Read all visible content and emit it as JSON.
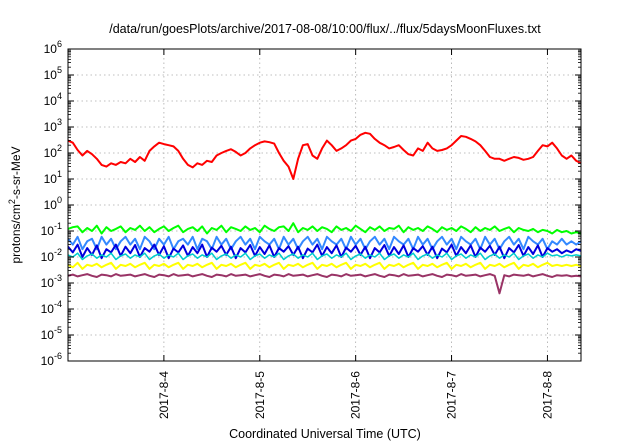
{
  "chart_data": {
    "type": "line",
    "title": "/data/run/goesPlots/archive/2017-08-08/10:00/flux/../flux/5daysMoonFluxes.txt",
    "xlabel": "Coordinated Universal Time (UTC)",
    "ylabel_parts": [
      "protons/cm",
      "2",
      "-s-sr-MeV"
    ],
    "yscale": "log",
    "ylim": [
      1e-06,
      1000000.0
    ],
    "xlim": [
      0.0,
      5.35
    ],
    "x_origin_date": "2017-08-03 00:00 UTC",
    "grid": true,
    "y_ticks": [
      {
        "base": "10",
        "exp": "-6",
        "value": 1e-06
      },
      {
        "base": "10",
        "exp": "-5",
        "value": 1e-05
      },
      {
        "base": "10",
        "exp": "-4",
        "value": 0.0001
      },
      {
        "base": "10",
        "exp": "-3",
        "value": 0.001
      },
      {
        "base": "10",
        "exp": "-2",
        "value": 0.01
      },
      {
        "base": "10",
        "exp": "-1",
        "value": 0.1
      },
      {
        "base": "10",
        "exp": "0",
        "value": 1.0
      },
      {
        "base": "10",
        "exp": "1",
        "value": 10.0
      },
      {
        "base": "10",
        "exp": "2",
        "value": 100.0
      },
      {
        "base": "10",
        "exp": "3",
        "value": 1000.0
      },
      {
        "base": "10",
        "exp": "4",
        "value": 10000.0
      },
      {
        "base": "10",
        "exp": "5",
        "value": 100000.0
      },
      {
        "base": "10",
        "exp": "6",
        "value": 1000000.0
      }
    ],
    "x_ticks": [
      {
        "label": "2017-8-4",
        "value": 1.0
      },
      {
        "label": "2017-8-5",
        "value": 2.0
      },
      {
        "label": "2017-8-6",
        "value": 3.0
      },
      {
        "label": "2017-8-7",
        "value": 4.0
      },
      {
        "label": "2017-8-8",
        "value": 5.0
      }
    ],
    "x": [
      0.0,
      0.05,
      0.1,
      0.15,
      0.2,
      0.25,
      0.3,
      0.35,
      0.4,
      0.45,
      0.5,
      0.55,
      0.6,
      0.65,
      0.7,
      0.75,
      0.8,
      0.85,
      0.9,
      0.95,
      1.0,
      1.05,
      1.1,
      1.15,
      1.2,
      1.25,
      1.3,
      1.35,
      1.4,
      1.45,
      1.5,
      1.55,
      1.6,
      1.65,
      1.7,
      1.75,
      1.8,
      1.85,
      1.9,
      1.95,
      2.0,
      2.05,
      2.1,
      2.15,
      2.2,
      2.25,
      2.3,
      2.35,
      2.4,
      2.45,
      2.5,
      2.55,
      2.6,
      2.65,
      2.7,
      2.75,
      2.8,
      2.85,
      2.9,
      2.95,
      3.0,
      3.05,
      3.1,
      3.15,
      3.2,
      3.25,
      3.3,
      3.35,
      3.4,
      3.45,
      3.5,
      3.55,
      3.6,
      3.65,
      3.7,
      3.75,
      3.8,
      3.85,
      3.9,
      3.95,
      4.0,
      4.05,
      4.1,
      4.15,
      4.2,
      4.25,
      4.3,
      4.35,
      4.4,
      4.45,
      4.5,
      4.55,
      4.6,
      4.65,
      4.7,
      4.75,
      4.8,
      4.85,
      4.9,
      4.95,
      5.0,
      5.05,
      5.1,
      5.15,
      5.2,
      5.25,
      5.3,
      5.35
    ],
    "series": [
      {
        "color": "#ff0000",
        "width": 2,
        "values": [
          300,
          250,
          130,
          80,
          120,
          90,
          60,
          35,
          30,
          40,
          35,
          45,
          40,
          60,
          45,
          70,
          50,
          120,
          180,
          250,
          220,
          200,
          180,
          120,
          60,
          35,
          28,
          40,
          35,
          50,
          45,
          80,
          100,
          120,
          140,
          110,
          80,
          100,
          150,
          200,
          250,
          280,
          260,
          230,
          100,
          50,
          30,
          10,
          60,
          200,
          220,
          80,
          60,
          150,
          300,
          200,
          120,
          150,
          200,
          300,
          350,
          500,
          600,
          550,
          350,
          250,
          200,
          150,
          170,
          200,
          130,
          90,
          80,
          150,
          120,
          250,
          150,
          120,
          130,
          150,
          200,
          300,
          450,
          420,
          350,
          280,
          200,
          120,
          70,
          60,
          60,
          50,
          60,
          70,
          65,
          55,
          60,
          70,
          120,
          200,
          180,
          250,
          150,
          80,
          60,
          80,
          50,
          40
        ]
      },
      {
        "color": "#00ff00",
        "width": 2,
        "values": [
          0.12,
          0.14,
          0.15,
          0.09,
          0.13,
          0.1,
          0.16,
          0.08,
          0.14,
          0.1,
          0.12,
          0.15,
          0.09,
          0.13,
          0.11,
          0.16,
          0.1,
          0.14,
          0.09,
          0.12,
          0.15,
          0.1,
          0.13,
          0.16,
          0.09,
          0.12,
          0.14,
          0.1,
          0.15,
          0.08,
          0.13,
          0.11,
          0.16,
          0.09,
          0.14,
          0.12,
          0.1,
          0.15,
          0.11,
          0.13,
          0.09,
          0.16,
          0.12,
          0.1,
          0.14,
          0.15,
          0.1,
          0.2,
          0.09,
          0.13,
          0.11,
          0.15,
          0.1,
          0.14,
          0.12,
          0.09,
          0.15,
          0.11,
          0.13,
          0.1,
          0.16,
          0.12,
          0.09,
          0.14,
          0.11,
          0.15,
          0.1,
          0.13,
          0.12,
          0.16,
          0.09,
          0.14,
          0.11,
          0.13,
          0.1,
          0.15,
          0.12,
          0.09,
          0.14,
          0.11,
          0.13,
          0.1,
          0.15,
          0.12,
          0.09,
          0.14,
          0.1,
          0.13,
          0.11,
          0.15,
          0.1,
          0.12,
          0.14,
          0.09,
          0.13,
          0.11,
          0.1,
          0.12,
          0.09,
          0.11,
          0.1,
          0.08,
          0.11,
          0.09,
          0.1,
          0.08,
          0.09,
          0.08
        ]
      },
      {
        "color": "#3388ff",
        "width": 2,
        "values": [
          0.05,
          0.03,
          0.06,
          0.02,
          0.04,
          0.05,
          0.02,
          0.06,
          0.03,
          0.05,
          0.02,
          0.04,
          0.06,
          0.03,
          0.05,
          0.02,
          0.06,
          0.04,
          0.02,
          0.05,
          0.03,
          0.06,
          0.02,
          0.04,
          0.05,
          0.03,
          0.06,
          0.02,
          0.05,
          0.04,
          0.02,
          0.06,
          0.03,
          0.05,
          0.02,
          0.04,
          0.06,
          0.03,
          0.05,
          0.02,
          0.06,
          0.04,
          0.03,
          0.05,
          0.02,
          0.06,
          0.03,
          0.05,
          0.02,
          0.04,
          0.06,
          0.03,
          0.05,
          0.02,
          0.06,
          0.04,
          0.03,
          0.05,
          0.02,
          0.06,
          0.03,
          0.05,
          0.02,
          0.04,
          0.06,
          0.03,
          0.05,
          0.02,
          0.06,
          0.04,
          0.03,
          0.05,
          0.02,
          0.06,
          0.03,
          0.05,
          0.02,
          0.04,
          0.06,
          0.03,
          0.05,
          0.02,
          0.06,
          0.04,
          0.03,
          0.05,
          0.02,
          0.06,
          0.03,
          0.05,
          0.02,
          0.04,
          0.06,
          0.03,
          0.05,
          0.02,
          0.06,
          0.04,
          0.03,
          0.05,
          0.02,
          0.04,
          0.03,
          0.05,
          0.03,
          0.04,
          0.03,
          0.04
        ]
      },
      {
        "color": "#0000dd",
        "width": 2,
        "values": [
          0.025,
          0.015,
          0.03,
          0.01,
          0.022,
          0.012,
          0.028,
          0.009,
          0.02,
          0.015,
          0.03,
          0.011,
          0.025,
          0.014,
          0.029,
          0.01,
          0.022,
          0.016,
          0.03,
          0.012,
          0.026,
          0.009,
          0.021,
          0.015,
          0.028,
          0.011,
          0.024,
          0.014,
          0.03,
          0.01,
          0.023,
          0.016,
          0.027,
          0.012,
          0.025,
          0.009,
          0.022,
          0.015,
          0.029,
          0.011,
          0.024,
          0.013,
          0.028,
          0.01,
          0.022,
          0.016,
          0.026,
          0.012,
          0.025,
          0.009,
          0.021,
          0.015,
          0.03,
          0.011,
          0.024,
          0.014,
          0.028,
          0.01,
          0.023,
          0.016,
          0.027,
          0.012,
          0.025,
          0.009,
          0.022,
          0.015,
          0.029,
          0.011,
          0.024,
          0.013,
          0.028,
          0.01,
          0.022,
          0.016,
          0.026,
          0.012,
          0.025,
          0.009,
          0.021,
          0.015,
          0.03,
          0.011,
          0.024,
          0.014,
          0.028,
          0.01,
          0.023,
          0.016,
          0.027,
          0.012,
          0.025,
          0.009,
          0.022,
          0.015,
          0.029,
          0.011,
          0.024,
          0.013,
          0.028,
          0.01,
          0.022,
          0.016,
          0.02,
          0.014,
          0.018,
          0.015,
          0.02,
          0.017
        ]
      },
      {
        "color": "#00cccc",
        "width": 1.5,
        "values": [
          0.012,
          0.01,
          0.014,
          0.008,
          0.011,
          0.013,
          0.009,
          0.012,
          0.01,
          0.014,
          0.008,
          0.011,
          0.013,
          0.009,
          0.012,
          0.01,
          0.014,
          0.008,
          0.011,
          0.013,
          0.009,
          0.012,
          0.01,
          0.014,
          0.008,
          0.011,
          0.013,
          0.009,
          0.012,
          0.01,
          0.014,
          0.008,
          0.011,
          0.013,
          0.009,
          0.012,
          0.01,
          0.014,
          0.008,
          0.011,
          0.013,
          0.009,
          0.012,
          0.01,
          0.014,
          0.008,
          0.011,
          0.013,
          0.009,
          0.012,
          0.01,
          0.014,
          0.008,
          0.011,
          0.013,
          0.009,
          0.012,
          0.01,
          0.014,
          0.008,
          0.011,
          0.013,
          0.009,
          0.012,
          0.01,
          0.014,
          0.008,
          0.011,
          0.013,
          0.009,
          0.012,
          0.01,
          0.014,
          0.008,
          0.011,
          0.013,
          0.009,
          0.012,
          0.01,
          0.014,
          0.008,
          0.011,
          0.013,
          0.009,
          0.012,
          0.01,
          0.014,
          0.008,
          0.011,
          0.013,
          0.009,
          0.012,
          0.01,
          0.014,
          0.008,
          0.011,
          0.013,
          0.009,
          0.012,
          0.01,
          0.014,
          0.011,
          0.012,
          0.01,
          0.012,
          0.011,
          0.012,
          0.011
        ]
      },
      {
        "color": "#ffff00",
        "width": 2,
        "values": [
          0.005,
          0.004,
          0.006,
          0.0035,
          0.005,
          0.0045,
          0.0055,
          0.004,
          0.005,
          0.006,
          0.0035,
          0.005,
          0.0045,
          0.0055,
          0.004,
          0.005,
          0.006,
          0.0035,
          0.005,
          0.0045,
          0.0055,
          0.004,
          0.005,
          0.006,
          0.0035,
          0.005,
          0.0045,
          0.0055,
          0.004,
          0.005,
          0.006,
          0.0035,
          0.005,
          0.0045,
          0.0055,
          0.004,
          0.005,
          0.006,
          0.0035,
          0.005,
          0.0045,
          0.0055,
          0.004,
          0.005,
          0.006,
          0.0035,
          0.005,
          0.0045,
          0.0055,
          0.004,
          0.005,
          0.006,
          0.0035,
          0.005,
          0.0045,
          0.0055,
          0.004,
          0.005,
          0.006,
          0.0035,
          0.005,
          0.0045,
          0.0055,
          0.004,
          0.005,
          0.006,
          0.0035,
          0.005,
          0.0045,
          0.0055,
          0.004,
          0.005,
          0.006,
          0.0035,
          0.005,
          0.0045,
          0.0055,
          0.004,
          0.005,
          0.006,
          0.0035,
          0.005,
          0.0045,
          0.0055,
          0.004,
          0.005,
          0.006,
          0.0035,
          0.005,
          0.0045,
          0.0055,
          0.004,
          0.005,
          0.006,
          0.0035,
          0.005,
          0.0045,
          0.0055,
          0.004,
          0.005,
          0.006,
          0.0045,
          0.005,
          0.0045,
          0.005,
          0.0045,
          0.005,
          0.0045
        ]
      },
      {
        "color": "#993366",
        "width": 2,
        "values": [
          0.0019,
          0.0021,
          0.0018,
          0.002,
          0.0022,
          0.0019,
          0.0017,
          0.0021,
          0.002,
          0.0018,
          0.0022,
          0.0019,
          0.002,
          0.0021,
          0.0018,
          0.002,
          0.0022,
          0.0019,
          0.0017,
          0.0021,
          0.002,
          0.0018,
          0.0022,
          0.0019,
          0.002,
          0.0021,
          0.0018,
          0.002,
          0.0022,
          0.0019,
          0.0017,
          0.0021,
          0.002,
          0.0018,
          0.0022,
          0.0019,
          0.002,
          0.0021,
          0.0018,
          0.002,
          0.0022,
          0.0019,
          0.0017,
          0.0021,
          0.002,
          0.0018,
          0.0022,
          0.0019,
          0.002,
          0.0021,
          0.0018,
          0.002,
          0.0022,
          0.0019,
          0.0017,
          0.0021,
          0.002,
          0.0018,
          0.0022,
          0.0019,
          0.002,
          0.0021,
          0.0018,
          0.002,
          0.0022,
          0.0019,
          0.0017,
          0.0021,
          0.002,
          0.0018,
          0.0022,
          0.0019,
          0.002,
          0.0021,
          0.0018,
          0.002,
          0.0022,
          0.0019,
          0.0017,
          0.0021,
          0.002,
          0.0018,
          0.0022,
          0.0019,
          0.002,
          0.0021,
          0.0018,
          0.002,
          0.0022,
          0.0019,
          0.0004,
          0.002,
          0.0018,
          0.0021,
          0.002,
          0.0019,
          0.0021,
          0.0018,
          0.002,
          0.0022,
          0.0019,
          0.0017,
          0.002,
          0.0019,
          0.002,
          0.0018,
          0.0019,
          0.0018
        ]
      }
    ]
  }
}
